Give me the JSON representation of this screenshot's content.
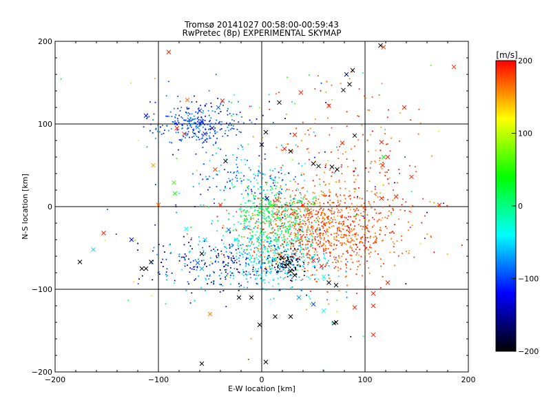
{
  "chart_data": {
    "type": "scatter",
    "title": "Tromsø 20141027 00:58:00-00:59:43",
    "subtitle": "RwPretec (8p) EXPERIMENTAL SKYMAP",
    "xlabel": "E-W location [km]",
    "ylabel": "N-S location [km]",
    "xlim": [
      -200,
      200
    ],
    "ylim": [
      -200,
      200
    ],
    "x_ticks": [
      "−200",
      "−100",
      "0",
      "100",
      "200"
    ],
    "y_ticks": [
      "−200",
      "−100",
      "0",
      "100",
      "200"
    ],
    "grid_lines": [
      -100,
      0,
      100
    ],
    "grid": true,
    "colorbar": {
      "label": "[m/s]",
      "range": [
        -200,
        200
      ],
      "ticks": [
        "200",
        "100",
        "0",
        "−100",
        "−200"
      ],
      "placement": "right",
      "stops": [
        "#000000",
        "#0000ff",
        "#00ffff",
        "#00ff00",
        "#ffff00",
        "#ff0000"
      ]
    },
    "markers": {
      "small": "dot",
      "large": "x"
    },
    "clusters": [
      {
        "name": "ne-red",
        "cx": 60,
        "cy": -28,
        "sx": 34,
        "sy": 26,
        "n": 900,
        "v": [
          150,
          200
        ]
      },
      {
        "name": "ne-red-upper",
        "cx": 85,
        "cy": 40,
        "sx": 40,
        "sy": 55,
        "n": 230,
        "v": [
          150,
          200
        ]
      },
      {
        "name": "center-green",
        "cx": 10,
        "cy": -18,
        "sx": 20,
        "sy": 24,
        "n": 420,
        "v": [
          -20,
          40
        ]
      },
      {
        "name": "center-cyan",
        "cx": 15,
        "cy": -65,
        "sx": 26,
        "sy": 18,
        "n": 330,
        "v": [
          -80,
          -30
        ]
      },
      {
        "name": "nw-blue",
        "cx": -60,
        "cy": 100,
        "sx": 22,
        "sy": 13,
        "n": 270,
        "v": [
          -130,
          -70
        ]
      },
      {
        "name": "mid-blue",
        "cx": -15,
        "cy": 35,
        "sx": 30,
        "sy": 20,
        "n": 150,
        "v": [
          -120,
          -40
        ]
      },
      {
        "name": "sw-mixed",
        "cx": -45,
        "cy": -70,
        "sx": 35,
        "sy": 18,
        "n": 230,
        "v": [
          -200,
          -50
        ]
      },
      {
        "name": "lower-black",
        "cx": 25,
        "cy": -68,
        "sx": 8,
        "sy": 8,
        "n": 80,
        "v": [
          -200,
          -170
        ]
      },
      {
        "name": "scatter-wide",
        "cx": 20,
        "cy": 10,
        "sx": 85,
        "sy": 85,
        "n": 150,
        "v": [
          -200,
          200
        ]
      }
    ],
    "crosses": [
      {
        "x": 115,
        "y": 195,
        "v": -200
      },
      {
        "x": 118,
        "y": 193,
        "v": 180
      },
      {
        "x": 88,
        "y": 165,
        "v": -200
      },
      {
        "x": 82,
        "y": 160,
        "v": -160
      },
      {
        "x": 85,
        "y": 148,
        "v": -200
      },
      {
        "x": 79,
        "y": 141,
        "v": -200
      },
      {
        "x": 186,
        "y": 169,
        "v": 190
      },
      {
        "x": -90,
        "y": 187,
        "v": 190
      },
      {
        "x": -112,
        "y": 110,
        "v": -120
      },
      {
        "x": -72,
        "y": 129,
        "v": 170
      },
      {
        "x": -60,
        "y": 116,
        "v": -110
      },
      {
        "x": -58,
        "y": 103,
        "v": -120
      },
      {
        "x": -62,
        "y": 96,
        "v": -80
      },
      {
        "x": -55,
        "y": 88,
        "v": -110
      },
      {
        "x": -48,
        "y": 95,
        "v": -150
      },
      {
        "x": -82,
        "y": 95,
        "v": 190
      },
      {
        "x": -75,
        "y": 88,
        "v": 180
      },
      {
        "x": -70,
        "y": 105,
        "v": -90
      },
      {
        "x": -42,
        "y": 120,
        "v": -90
      },
      {
        "x": -38,
        "y": 128,
        "v": 190
      },
      {
        "x": 38,
        "y": 138,
        "v": 190
      },
      {
        "x": 65,
        "y": 122,
        "v": 190
      },
      {
        "x": 17,
        "y": 126,
        "v": -200
      },
      {
        "x": 138,
        "y": 120,
        "v": 190
      },
      {
        "x": 4,
        "y": 90,
        "v": -200
      },
      {
        "x": 32,
        "y": 87,
        "v": 190
      },
      {
        "x": 78,
        "y": 77,
        "v": 190
      },
      {
        "x": 90,
        "y": 86,
        "v": -200
      },
      {
        "x": 118,
        "y": 60,
        "v": 40
      },
      {
        "x": 116,
        "y": 78,
        "v": 190
      },
      {
        "x": 28,
        "y": 67,
        "v": -200
      },
      {
        "x": 22,
        "y": 70,
        "v": 190
      },
      {
        "x": 50,
        "y": 52,
        "v": -200
      },
      {
        "x": 68,
        "y": 48,
        "v": -200
      },
      {
        "x": 55,
        "y": 49,
        "v": -200
      },
      {
        "x": 73,
        "y": 45,
        "v": -200
      },
      {
        "x": 117,
        "y": 50,
        "v": 190
      },
      {
        "x": 122,
        "y": 60,
        "v": 190
      },
      {
        "x": 145,
        "y": 36,
        "v": 190
      },
      {
        "x": 172,
        "y": 2,
        "v": 190
      },
      {
        "x": -85,
        "y": 29,
        "v": 60
      },
      {
        "x": -84,
        "y": 16,
        "v": 40
      },
      {
        "x": -105,
        "y": 50,
        "v": 150
      },
      {
        "x": -100,
        "y": 2,
        "v": 170
      },
      {
        "x": -45,
        "y": 45,
        "v": 180
      },
      {
        "x": -40,
        "y": 2,
        "v": 190
      },
      {
        "x": 130,
        "y": 12,
        "v": 190
      },
      {
        "x": 116,
        "y": 10,
        "v": 190
      },
      {
        "x": -153,
        "y": -32,
        "v": 190
      },
      {
        "x": -163,
        "y": -52,
        "v": -50
      },
      {
        "x": -126,
        "y": -40,
        "v": -120
      },
      {
        "x": -176,
        "y": -67,
        "v": -200
      },
      {
        "x": -116,
        "y": -75,
        "v": -200
      },
      {
        "x": -107,
        "y": -67,
        "v": -200
      },
      {
        "x": -112,
        "y": -75,
        "v": -200
      },
      {
        "x": -73,
        "y": -27,
        "v": -40
      },
      {
        "x": -55,
        "y": -40,
        "v": -50
      },
      {
        "x": -58,
        "y": -57,
        "v": -200
      },
      {
        "x": -62,
        "y": -68,
        "v": -90
      },
      {
        "x": -58,
        "y": -75,
        "v": -70
      },
      {
        "x": -50,
        "y": -130,
        "v": 160
      },
      {
        "x": -58,
        "y": -190,
        "v": -200
      },
      {
        "x": -22,
        "y": -110,
        "v": -200
      },
      {
        "x": -10,
        "y": -110,
        "v": -200
      },
      {
        "x": -2,
        "y": -143,
        "v": -200
      },
      {
        "x": 4,
        "y": -188,
        "v": -200
      },
      {
        "x": 13,
        "y": -133,
        "v": -200
      },
      {
        "x": 28,
        "y": -133,
        "v": -200
      },
      {
        "x": 70,
        "y": -141,
        "v": -200
      },
      {
        "x": 72,
        "y": -140,
        "v": -200
      },
      {
        "x": 36,
        "y": -110,
        "v": -70
      },
      {
        "x": 50,
        "y": -118,
        "v": -100
      },
      {
        "x": 60,
        "y": -126,
        "v": -40
      },
      {
        "x": 90,
        "y": -122,
        "v": 190
      },
      {
        "x": 108,
        "y": -120,
        "v": 190
      },
      {
        "x": 122,
        "y": -92,
        "v": 190
      },
      {
        "x": 108,
        "y": -105,
        "v": 190
      },
      {
        "x": 108,
        "y": -155,
        "v": 190
      },
      {
        "x": 65,
        "y": -92,
        "v": -200
      },
      {
        "x": 72,
        "y": -95,
        "v": -200
      },
      {
        "x": 60,
        "y": -85,
        "v": -40
      },
      {
        "x": 28,
        "y": -78,
        "v": -200
      },
      {
        "x": 32,
        "y": -83,
        "v": -200
      },
      {
        "x": 20,
        "y": -62,
        "v": -200
      },
      {
        "x": 25,
        "y": -70,
        "v": -200
      },
      {
        "x": 18,
        "y": -58,
        "v": 160
      },
      {
        "x": 50,
        "y": -65,
        "v": 190
      },
      {
        "x": 58,
        "y": -72,
        "v": 190
      },
      {
        "x": 40,
        "y": 2,
        "v": 190
      },
      {
        "x": 5,
        "y": 10,
        "v": -140
      },
      {
        "x": 10,
        "y": 2,
        "v": 60
      },
      {
        "x": 15,
        "y": 8,
        "v": 190
      },
      {
        "x": -25,
        "y": -40,
        "v": -40
      },
      {
        "x": -15,
        "y": -25,
        "v": -60
      },
      {
        "x": 15,
        "y": -40,
        "v": 0
      },
      {
        "x": -32,
        "y": -28,
        "v": -80
      },
      {
        "x": 0,
        "y": 75,
        "v": -180
      },
      {
        "x": -35,
        "y": 55,
        "v": -190
      }
    ]
  }
}
